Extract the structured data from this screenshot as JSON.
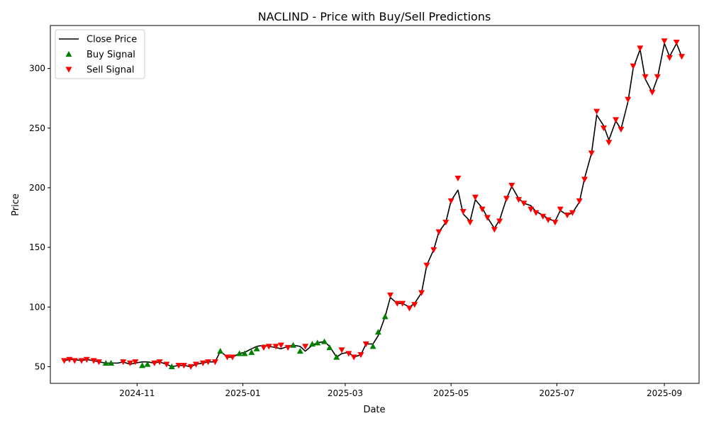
{
  "chart_data": {
    "type": "line",
    "title": "NACLIND - Price with Buy/Sell Predictions",
    "xlabel": "Date",
    "ylabel": "Price",
    "xlim": [
      "2024-09-12",
      "2025-09-21"
    ],
    "ylim": [
      36,
      336
    ],
    "x_ticks": [
      {
        "date": "2024-11-01",
        "label": "2024-11"
      },
      {
        "date": "2025-01-01",
        "label": "2025-01"
      },
      {
        "date": "2025-03-01",
        "label": "2025-03"
      },
      {
        "date": "2025-05-01",
        "label": "2025-05"
      },
      {
        "date": "2025-07-01",
        "label": "2025-07"
      },
      {
        "date": "2025-09-01",
        "label": "2025-09"
      }
    ],
    "y_ticks": [
      50,
      100,
      150,
      200,
      250,
      300
    ],
    "grid": false,
    "legend": {
      "position": "top-left",
      "entries": [
        {
          "label": "Close Price",
          "marker": "line",
          "color": "#000000"
        },
        {
          "label": "Buy Signal",
          "marker": "triangle-up",
          "color": "#008000"
        },
        {
          "label": "Sell Signal",
          "marker": "triangle-down",
          "color": "#ff0000"
        }
      ]
    },
    "series": [
      {
        "name": "Close Price",
        "color": "#000000",
        "points": [
          [
            "2024-09-20",
            55
          ],
          [
            "2024-09-23",
            56
          ],
          [
            "2024-09-26",
            56
          ],
          [
            "2024-09-30",
            55
          ],
          [
            "2024-10-03",
            56
          ],
          [
            "2024-10-07",
            55
          ],
          [
            "2024-10-10",
            54
          ],
          [
            "2024-10-14",
            53
          ],
          [
            "2024-10-17",
            53
          ],
          [
            "2024-10-21",
            53
          ],
          [
            "2024-10-24",
            54
          ],
          [
            "2024-10-28",
            52
          ],
          [
            "2024-10-31",
            53
          ],
          [
            "2024-11-04",
            54
          ],
          [
            "2024-11-07",
            54
          ],
          [
            "2024-11-11",
            53
          ],
          [
            "2024-11-14",
            54
          ],
          [
            "2024-11-18",
            52
          ],
          [
            "2024-11-21",
            50
          ],
          [
            "2024-11-25",
            51
          ],
          [
            "2024-11-28",
            51
          ],
          [
            "2024-12-02",
            50
          ],
          [
            "2024-12-05",
            52
          ],
          [
            "2024-12-09",
            53
          ],
          [
            "2024-12-12",
            54
          ],
          [
            "2024-12-16",
            54
          ],
          [
            "2024-12-19",
            63
          ],
          [
            "2024-12-23",
            58
          ],
          [
            "2024-12-26",
            58
          ],
          [
            "2024-12-30",
            61
          ],
          [
            "2025-01-02",
            62
          ],
          [
            "2025-01-06",
            65
          ],
          [
            "2025-01-09",
            67
          ],
          [
            "2025-01-13",
            68
          ],
          [
            "2025-01-16",
            67
          ],
          [
            "2025-01-20",
            66
          ],
          [
            "2025-01-23",
            65
          ],
          [
            "2025-01-27",
            67
          ],
          [
            "2025-01-30",
            68
          ],
          [
            "2025-02-03",
            67
          ],
          [
            "2025-02-06",
            63
          ],
          [
            "2025-02-10",
            68
          ],
          [
            "2025-02-13",
            70
          ],
          [
            "2025-02-17",
            71
          ],
          [
            "2025-02-20",
            67
          ],
          [
            "2025-02-24",
            58
          ],
          [
            "2025-02-27",
            61
          ],
          [
            "2025-03-03",
            62
          ],
          [
            "2025-03-06",
            58
          ],
          [
            "2025-03-10",
            60
          ],
          [
            "2025-03-13",
            69
          ],
          [
            "2025-03-17",
            69
          ],
          [
            "2025-03-20",
            76
          ],
          [
            "2025-03-24",
            92
          ],
          [
            "2025-03-27",
            108
          ],
          [
            "2025-03-31",
            103
          ],
          [
            "2025-04-03",
            103
          ],
          [
            "2025-04-07",
            100
          ],
          [
            "2025-04-10",
            103
          ],
          [
            "2025-04-14",
            112
          ],
          [
            "2025-04-17",
            135
          ],
          [
            "2025-04-21",
            148
          ],
          [
            "2025-04-24",
            163
          ],
          [
            "2025-04-28",
            171
          ],
          [
            "2025-05-01",
            189
          ],
          [
            "2025-05-05",
            198
          ],
          [
            "2025-05-08",
            178
          ],
          [
            "2025-05-12",
            172
          ],
          [
            "2025-05-15",
            190
          ],
          [
            "2025-05-19",
            183
          ],
          [
            "2025-05-22",
            175
          ],
          [
            "2025-05-26",
            166
          ],
          [
            "2025-05-29",
            173
          ],
          [
            "2025-06-02",
            191
          ],
          [
            "2025-06-05",
            201
          ],
          [
            "2025-06-09",
            191
          ],
          [
            "2025-06-12",
            187
          ],
          [
            "2025-06-16",
            185
          ],
          [
            "2025-06-19",
            180
          ],
          [
            "2025-06-23",
            177
          ],
          [
            "2025-06-26",
            174
          ],
          [
            "2025-06-30",
            172
          ],
          [
            "2025-07-03",
            181
          ],
          [
            "2025-07-07",
            177
          ],
          [
            "2025-07-10",
            179
          ],
          [
            "2025-07-14",
            188
          ],
          [
            "2025-07-17",
            208
          ],
          [
            "2025-07-21",
            229
          ],
          [
            "2025-07-24",
            261
          ],
          [
            "2025-07-28",
            252
          ],
          [
            "2025-07-31",
            240
          ],
          [
            "2025-08-04",
            256
          ],
          [
            "2025-08-07",
            249
          ],
          [
            "2025-08-11",
            272
          ],
          [
            "2025-08-14",
            300
          ],
          [
            "2025-08-18",
            316
          ],
          [
            "2025-08-21",
            291
          ],
          [
            "2025-08-25",
            280
          ],
          [
            "2025-08-28",
            292
          ],
          [
            "2025-09-01",
            321
          ],
          [
            "2025-09-04",
            310
          ],
          [
            "2025-09-08",
            321
          ],
          [
            "2025-09-11",
            310
          ]
        ]
      },
      {
        "name": "Buy Signal",
        "color": "#008000",
        "marker": "triangle-up",
        "points": [
          [
            "2024-10-14",
            53
          ],
          [
            "2024-10-17",
            53
          ],
          [
            "2024-11-04",
            51
          ],
          [
            "2024-11-07",
            52
          ],
          [
            "2024-11-21",
            50
          ],
          [
            "2024-12-19",
            63
          ],
          [
            "2024-12-30",
            61
          ],
          [
            "2025-01-02",
            61
          ],
          [
            "2025-01-06",
            62
          ],
          [
            "2025-01-09",
            65
          ],
          [
            "2025-01-30",
            68
          ],
          [
            "2025-02-03",
            63
          ],
          [
            "2025-02-10",
            69
          ],
          [
            "2025-02-13",
            70
          ],
          [
            "2025-02-17",
            71
          ],
          [
            "2025-02-20",
            66
          ],
          [
            "2025-02-24",
            58
          ],
          [
            "2025-03-17",
            67
          ],
          [
            "2025-03-20",
            79
          ],
          [
            "2025-03-24",
            92
          ]
        ]
      },
      {
        "name": "Sell Signal",
        "color": "#ff0000",
        "marker": "triangle-down",
        "points": [
          [
            "2024-09-20",
            55
          ],
          [
            "2024-09-23",
            56
          ],
          [
            "2024-09-26",
            55
          ],
          [
            "2024-09-30",
            55
          ],
          [
            "2024-10-03",
            56
          ],
          [
            "2024-10-07",
            55
          ],
          [
            "2024-10-10",
            54
          ],
          [
            "2024-10-24",
            54
          ],
          [
            "2024-10-28",
            53
          ],
          [
            "2024-10-31",
            54
          ],
          [
            "2024-11-11",
            53
          ],
          [
            "2024-11-14",
            54
          ],
          [
            "2024-11-18",
            52
          ],
          [
            "2024-11-25",
            51
          ],
          [
            "2024-11-28",
            51
          ],
          [
            "2024-12-02",
            50
          ],
          [
            "2024-12-05",
            52
          ],
          [
            "2024-12-09",
            53
          ],
          [
            "2024-12-12",
            54
          ],
          [
            "2024-12-16",
            54
          ],
          [
            "2024-12-23",
            58
          ],
          [
            "2024-12-26",
            58
          ],
          [
            "2025-01-13",
            66
          ],
          [
            "2025-01-16",
            67
          ],
          [
            "2025-01-20",
            67
          ],
          [
            "2025-01-23",
            68
          ],
          [
            "2025-01-27",
            66
          ],
          [
            "2025-02-06",
            67
          ],
          [
            "2025-02-27",
            64
          ],
          [
            "2025-03-03",
            61
          ],
          [
            "2025-03-06",
            58
          ],
          [
            "2025-03-10",
            60
          ],
          [
            "2025-03-13",
            69
          ],
          [
            "2025-03-27",
            110
          ],
          [
            "2025-03-31",
            103
          ],
          [
            "2025-04-03",
            103
          ],
          [
            "2025-04-07",
            99
          ],
          [
            "2025-04-10",
            102
          ],
          [
            "2025-04-14",
            112
          ],
          [
            "2025-04-17",
            135
          ],
          [
            "2025-04-21",
            148
          ],
          [
            "2025-04-24",
            163
          ],
          [
            "2025-04-28",
            171
          ],
          [
            "2025-05-01",
            189
          ],
          [
            "2025-05-05",
            208
          ],
          [
            "2025-05-08",
            180
          ],
          [
            "2025-05-12",
            171
          ],
          [
            "2025-05-15",
            192
          ],
          [
            "2025-05-19",
            182
          ],
          [
            "2025-05-22",
            175
          ],
          [
            "2025-05-26",
            165
          ],
          [
            "2025-05-29",
            172
          ],
          [
            "2025-06-02",
            191
          ],
          [
            "2025-06-05",
            202
          ],
          [
            "2025-06-09",
            190
          ],
          [
            "2025-06-12",
            187
          ],
          [
            "2025-06-16",
            182
          ],
          [
            "2025-06-19",
            179
          ],
          [
            "2025-06-23",
            176
          ],
          [
            "2025-06-26",
            173
          ],
          [
            "2025-06-30",
            171
          ],
          [
            "2025-07-03",
            182
          ],
          [
            "2025-07-07",
            177
          ],
          [
            "2025-07-10",
            179
          ],
          [
            "2025-07-14",
            189
          ],
          [
            "2025-07-17",
            207
          ],
          [
            "2025-07-21",
            229
          ],
          [
            "2025-07-24",
            264
          ],
          [
            "2025-07-28",
            250
          ],
          [
            "2025-07-31",
            238
          ],
          [
            "2025-08-04",
            257
          ],
          [
            "2025-08-07",
            249
          ],
          [
            "2025-08-11",
            274
          ],
          [
            "2025-08-14",
            302
          ],
          [
            "2025-08-18",
            317
          ],
          [
            "2025-08-21",
            293
          ],
          [
            "2025-08-25",
            280
          ],
          [
            "2025-08-28",
            293
          ],
          [
            "2025-09-01",
            323
          ],
          [
            "2025-09-04",
            309
          ],
          [
            "2025-09-08",
            322
          ],
          [
            "2025-09-11",
            310
          ]
        ]
      }
    ]
  }
}
